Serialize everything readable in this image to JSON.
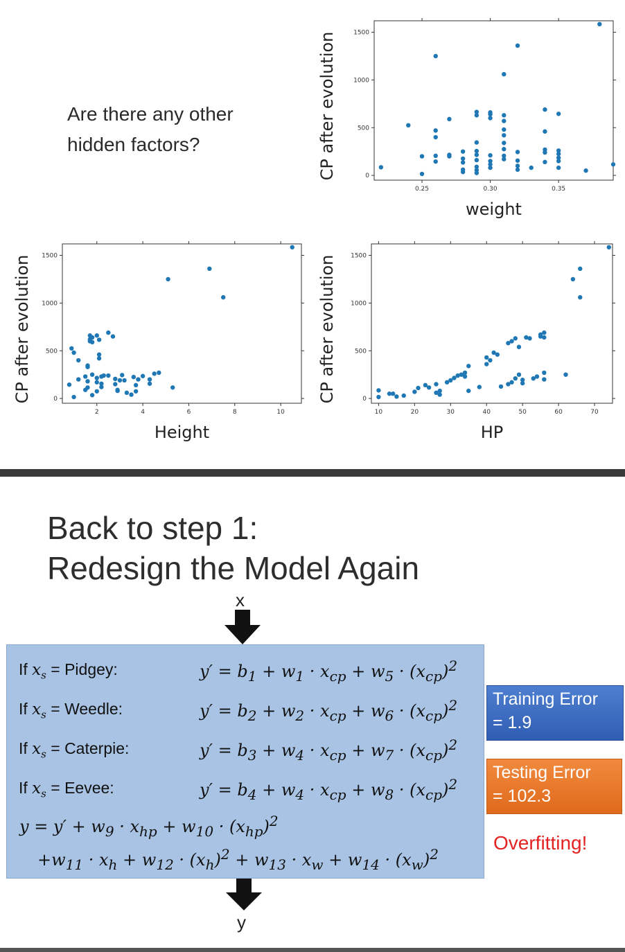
{
  "question": {
    "line1": "Are there any other",
    "line2": "hidden factors?"
  },
  "chart_data": [
    {
      "type": "scatter",
      "xlabel": "weight",
      "ylabel": "CP after evolution",
      "xlim": [
        0.215,
        0.39
      ],
      "ylim": [
        -50,
        1620
      ],
      "xticks": [
        "0.25",
        "0.30",
        "0.35"
      ],
      "xtick_values": [
        0.25,
        0.3,
        0.35
      ],
      "yticks": [
        "0",
        "500",
        "1000",
        "1500"
      ],
      "ytick_values": [
        0,
        500,
        1000,
        1500
      ],
      "color": "#1f77b4",
      "points": [
        [
          0.22,
          85
        ],
        [
          0.24,
          525
        ],
        [
          0.25,
          200
        ],
        [
          0.25,
          15
        ],
        [
          0.26,
          1250
        ],
        [
          0.26,
          470
        ],
        [
          0.26,
          400
        ],
        [
          0.26,
          205
        ],
        [
          0.26,
          145
        ],
        [
          0.27,
          590
        ],
        [
          0.27,
          215
        ],
        [
          0.27,
          200
        ],
        [
          0.28,
          250
        ],
        [
          0.28,
          175
        ],
        [
          0.28,
          135
        ],
        [
          0.28,
          60
        ],
        [
          0.28,
          35
        ],
        [
          0.29,
          665
        ],
        [
          0.29,
          630
        ],
        [
          0.29,
          345
        ],
        [
          0.29,
          255
        ],
        [
          0.29,
          215
        ],
        [
          0.29,
          160
        ],
        [
          0.29,
          90
        ],
        [
          0.29,
          55
        ],
        [
          0.29,
          25
        ],
        [
          0.3,
          660
        ],
        [
          0.3,
          640
        ],
        [
          0.3,
          600
        ],
        [
          0.3,
          210
        ],
        [
          0.3,
          150
        ],
        [
          0.3,
          115
        ],
        [
          0.3,
          80
        ],
        [
          0.31,
          1060
        ],
        [
          0.31,
          630
        ],
        [
          0.31,
          570
        ],
        [
          0.31,
          480
        ],
        [
          0.31,
          420
        ],
        [
          0.31,
          340
        ],
        [
          0.31,
          275
        ],
        [
          0.31,
          205
        ],
        [
          0.31,
          170
        ],
        [
          0.32,
          1360
        ],
        [
          0.32,
          245
        ],
        [
          0.32,
          155
        ],
        [
          0.32,
          100
        ],
        [
          0.32,
          60
        ],
        [
          0.33,
          80
        ],
        [
          0.34,
          690
        ],
        [
          0.34,
          460
        ],
        [
          0.34,
          270
        ],
        [
          0.34,
          240
        ],
        [
          0.34,
          140
        ],
        [
          0.35,
          645
        ],
        [
          0.35,
          260
        ],
        [
          0.35,
          225
        ],
        [
          0.35,
          185
        ],
        [
          0.35,
          150
        ],
        [
          0.35,
          80
        ],
        [
          0.37,
          50
        ],
        [
          0.38,
          1585
        ],
        [
          0.39,
          115
        ]
      ]
    },
    {
      "type": "scatter",
      "xlabel": "Height",
      "ylabel": "CP after evolution",
      "xlim": [
        0.5,
        10.9
      ],
      "ylim": [
        -50,
        1620
      ],
      "xticks": [
        "2",
        "4",
        "6",
        "8",
        "10"
      ],
      "xtick_values": [
        2,
        4,
        6,
        8,
        10
      ],
      "yticks": [
        "0",
        "500",
        "1000",
        "1500"
      ],
      "ytick_values": [
        0,
        500,
        1000,
        1500
      ],
      "color": "#1f77b4",
      "points": [
        [
          0.8,
          145
        ],
        [
          0.9,
          525
        ],
        [
          1.0,
          15
        ],
        [
          1.0,
          480
        ],
        [
          1.2,
          200
        ],
        [
          1.2,
          400
        ],
        [
          1.5,
          230
        ],
        [
          1.5,
          90
        ],
        [
          1.6,
          345
        ],
        [
          1.6,
          330
        ],
        [
          1.6,
          180
        ],
        [
          1.6,
          115
        ],
        [
          1.7,
          660
        ],
        [
          1.7,
          620
        ],
        [
          1.7,
          600
        ],
        [
          1.8,
          640
        ],
        [
          1.8,
          590
        ],
        [
          1.8,
          250
        ],
        [
          1.8,
          35
        ],
        [
          2.0,
          660
        ],
        [
          2.0,
          215
        ],
        [
          2.0,
          170
        ],
        [
          2.0,
          75
        ],
        [
          2.1,
          615
        ],
        [
          2.1,
          460
        ],
        [
          2.1,
          420
        ],
        [
          2.2,
          230
        ],
        [
          2.2,
          155
        ],
        [
          2.2,
          120
        ],
        [
          2.3,
          240
        ],
        [
          2.5,
          690
        ],
        [
          2.5,
          240
        ],
        [
          2.7,
          650
        ],
        [
          2.8,
          205
        ],
        [
          2.8,
          150
        ],
        [
          2.9,
          80
        ],
        [
          2.9,
          90
        ],
        [
          3.0,
          190
        ],
        [
          3.1,
          245
        ],
        [
          3.2,
          190
        ],
        [
          3.3,
          60
        ],
        [
          3.5,
          40
        ],
        [
          3.6,
          225
        ],
        [
          3.7,
          140
        ],
        [
          3.7,
          75
        ],
        [
          3.8,
          200
        ],
        [
          4.0,
          235
        ],
        [
          4.3,
          155
        ],
        [
          4.3,
          200
        ],
        [
          4.5,
          260
        ],
        [
          4.7,
          270
        ],
        [
          5.1,
          1250
        ],
        [
          5.3,
          115
        ],
        [
          6.9,
          1360
        ],
        [
          7.5,
          1060
        ],
        [
          10.5,
          1585
        ]
      ]
    },
    {
      "type": "scatter",
      "xlabel": "HP",
      "ylabel": "CP after evolution",
      "xlim": [
        8,
        75
      ],
      "ylim": [
        -50,
        1620
      ],
      "xticks": [
        "10",
        "20",
        "30",
        "40",
        "50",
        "60",
        "70"
      ],
      "xtick_values": [
        10,
        20,
        30,
        40,
        50,
        60,
        70
      ],
      "yticks": [
        "0",
        "500",
        "1000",
        "1500"
      ],
      "ytick_values": [
        0,
        500,
        1000,
        1500
      ],
      "color": "#1f77b4",
      "points": [
        [
          10,
          85
        ],
        [
          10,
          15
        ],
        [
          13,
          50
        ],
        [
          14,
          50
        ],
        [
          15,
          20
        ],
        [
          17,
          30
        ],
        [
          20,
          70
        ],
        [
          21,
          110
        ],
        [
          23,
          140
        ],
        [
          24,
          115
        ],
        [
          26,
          150
        ],
        [
          26,
          60
        ],
        [
          27,
          40
        ],
        [
          27,
          80
        ],
        [
          29,
          170
        ],
        [
          30,
          190
        ],
        [
          31,
          215
        ],
        [
          32,
          240
        ],
        [
          33,
          250
        ],
        [
          34,
          270
        ],
        [
          34,
          230
        ],
        [
          35,
          340
        ],
        [
          35,
          80
        ],
        [
          38,
          120
        ],
        [
          40,
          430
        ],
        [
          40,
          360
        ],
        [
          41,
          400
        ],
        [
          42,
          480
        ],
        [
          43,
          460
        ],
        [
          44,
          125
        ],
        [
          46,
          150
        ],
        [
          46,
          580
        ],
        [
          47,
          170
        ],
        [
          47,
          600
        ],
        [
          48,
          630
        ],
        [
          48,
          210
        ],
        [
          49,
          540
        ],
        [
          49,
          250
        ],
        [
          50,
          195
        ],
        [
          50,
          160
        ],
        [
          51,
          640
        ],
        [
          52,
          630
        ],
        [
          53,
          210
        ],
        [
          54,
          230
        ],
        [
          55,
          670
        ],
        [
          55,
          650
        ],
        [
          56,
          690
        ],
        [
          56,
          640
        ],
        [
          56,
          270
        ],
        [
          56,
          200
        ],
        [
          62,
          250
        ],
        [
          64,
          1250
        ],
        [
          66,
          1360
        ],
        [
          66,
          1060
        ],
        [
          74,
          1585
        ]
      ]
    }
  ],
  "heading": {
    "line1": "Back to step 1:",
    "line2": "Redesign the Model Again"
  },
  "arrows": {
    "input_label": "x",
    "output_label": "y"
  },
  "model": {
    "rows": [
      {
        "condition": "If x",
        "sub": "s",
        "eq": "= Pidgey:",
        "b": "1",
        "w1": "1",
        "w2": "5"
      },
      {
        "condition": "If x",
        "sub": "s",
        "eq": "= Weedle:",
        "b": "2",
        "w1": "2",
        "w2": "6"
      },
      {
        "condition": "If x",
        "sub": "s",
        "eq": "= Caterpie:",
        "b": "3",
        "w1": "4",
        "w2": "7"
      },
      {
        "condition": "If x",
        "sub": "s",
        "eq": "= Eevee:",
        "b": "4",
        "w1": "4",
        "w2": "8"
      }
    ]
  },
  "errors": {
    "training_line1": "Training Error",
    "training_line2": "= 1.9",
    "testing_line1": "Testing Error",
    "testing_line2": "= 102.3",
    "overfitting": "Overfitting!",
    "training_color": "#3d6cc4",
    "testing_color": "#e8782a",
    "overfit_color": "#e32222"
  }
}
